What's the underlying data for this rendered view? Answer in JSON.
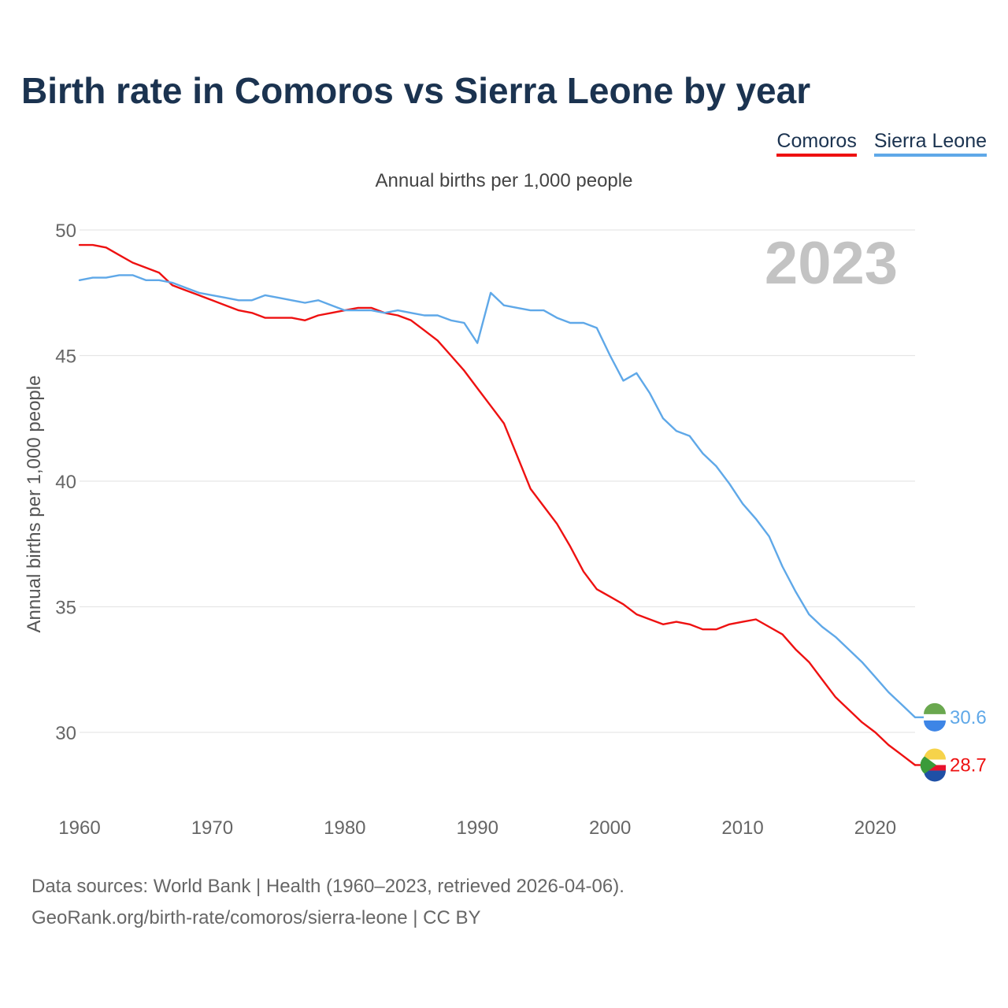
{
  "title": "Birth rate in Comoros vs Sierra Leone by year",
  "subtitle": "Annual births per 1,000 people",
  "footer": {
    "line1": "Data sources: World Bank | Health (1960–2023, retrieved 2026-04-06).",
    "line2": "GeoRank.org/birth-rate/comoros/sierra-leone | CC BY"
  },
  "legend": [
    {
      "name": "Comoros",
      "color": "#ee1111"
    },
    {
      "name": "Sierra Leone",
      "color": "#5fa8e8"
    }
  ],
  "chart_data": {
    "type": "line",
    "title": "Birth rate in Comoros vs Sierra Leone by year",
    "ylabel": "Annual births per 1,000 people",
    "xlabel": "",
    "year_label": "2023",
    "xlim": [
      1960,
      2023
    ],
    "ylim": [
      27.5,
      50
    ],
    "yticks": [
      30,
      35,
      40,
      45,
      50
    ],
    "xticks": [
      1960,
      1970,
      1980,
      1990,
      2000,
      2010,
      2020
    ],
    "grid": true,
    "series": [
      {
        "name": "Comoros",
        "color": "#ee1111",
        "end_label": "28.7",
        "x": [
          1960,
          1961,
          1962,
          1963,
          1964,
          1965,
          1966,
          1967,
          1968,
          1969,
          1970,
          1971,
          1972,
          1973,
          1974,
          1975,
          1976,
          1977,
          1978,
          1979,
          1980,
          1981,
          1982,
          1983,
          1984,
          1985,
          1986,
          1987,
          1988,
          1989,
          1990,
          1991,
          1992,
          1993,
          1994,
          1995,
          1996,
          1997,
          1998,
          1999,
          2000,
          2001,
          2002,
          2003,
          2004,
          2005,
          2006,
          2007,
          2008,
          2009,
          2010,
          2011,
          2012,
          2013,
          2014,
          2015,
          2016,
          2017,
          2018,
          2019,
          2020,
          2021,
          2022,
          2023
        ],
        "values": [
          49.4,
          49.4,
          49.3,
          49.0,
          48.7,
          48.5,
          48.3,
          47.8,
          47.6,
          47.4,
          47.2,
          47.0,
          46.8,
          46.7,
          46.5,
          46.5,
          46.5,
          46.4,
          46.6,
          46.7,
          46.8,
          46.9,
          46.9,
          46.7,
          46.6,
          46.4,
          46.0,
          45.6,
          45.0,
          44.4,
          43.7,
          43.0,
          42.3,
          41.0,
          39.7,
          39.0,
          38.3,
          37.4,
          36.4,
          35.7,
          35.4,
          35.1,
          34.7,
          34.5,
          34.3,
          34.4,
          34.3,
          34.1,
          34.1,
          34.3,
          34.4,
          34.5,
          34.2,
          33.9,
          33.3,
          32.8,
          32.1,
          31.4,
          30.9,
          30.4,
          30.0,
          29.5,
          29.1,
          28.7
        ]
      },
      {
        "name": "Sierra Leone",
        "color": "#5fa8e8",
        "end_label": "30.6",
        "x": [
          1960,
          1961,
          1962,
          1963,
          1964,
          1965,
          1966,
          1967,
          1968,
          1969,
          1970,
          1971,
          1972,
          1973,
          1974,
          1975,
          1976,
          1977,
          1978,
          1979,
          1980,
          1981,
          1982,
          1983,
          1984,
          1985,
          1986,
          1987,
          1988,
          1989,
          1990,
          1991,
          1992,
          1993,
          1994,
          1995,
          1996,
          1997,
          1998,
          1999,
          2000,
          2001,
          2002,
          2003,
          2004,
          2005,
          2006,
          2007,
          2008,
          2009,
          2010,
          2011,
          2012,
          2013,
          2014,
          2015,
          2016,
          2017,
          2018,
          2019,
          2020,
          2021,
          2022,
          2023
        ],
        "values": [
          48.0,
          48.1,
          48.1,
          48.2,
          48.2,
          48.0,
          48.0,
          47.9,
          47.7,
          47.5,
          47.4,
          47.3,
          47.2,
          47.2,
          47.4,
          47.3,
          47.2,
          47.1,
          47.2,
          47.0,
          46.8,
          46.8,
          46.8,
          46.7,
          46.8,
          46.7,
          46.6,
          46.6,
          46.4,
          46.3,
          45.5,
          47.5,
          47.0,
          46.9,
          46.8,
          46.8,
          46.5,
          46.3,
          46.3,
          46.1,
          45.0,
          44.0,
          44.3,
          43.5,
          42.5,
          42.0,
          41.8,
          41.1,
          40.6,
          39.9,
          39.1,
          38.5,
          37.8,
          36.6,
          35.6,
          34.7,
          34.2,
          33.8,
          33.3,
          32.8,
          32.2,
          31.6,
          31.1,
          30.6
        ]
      }
    ]
  }
}
